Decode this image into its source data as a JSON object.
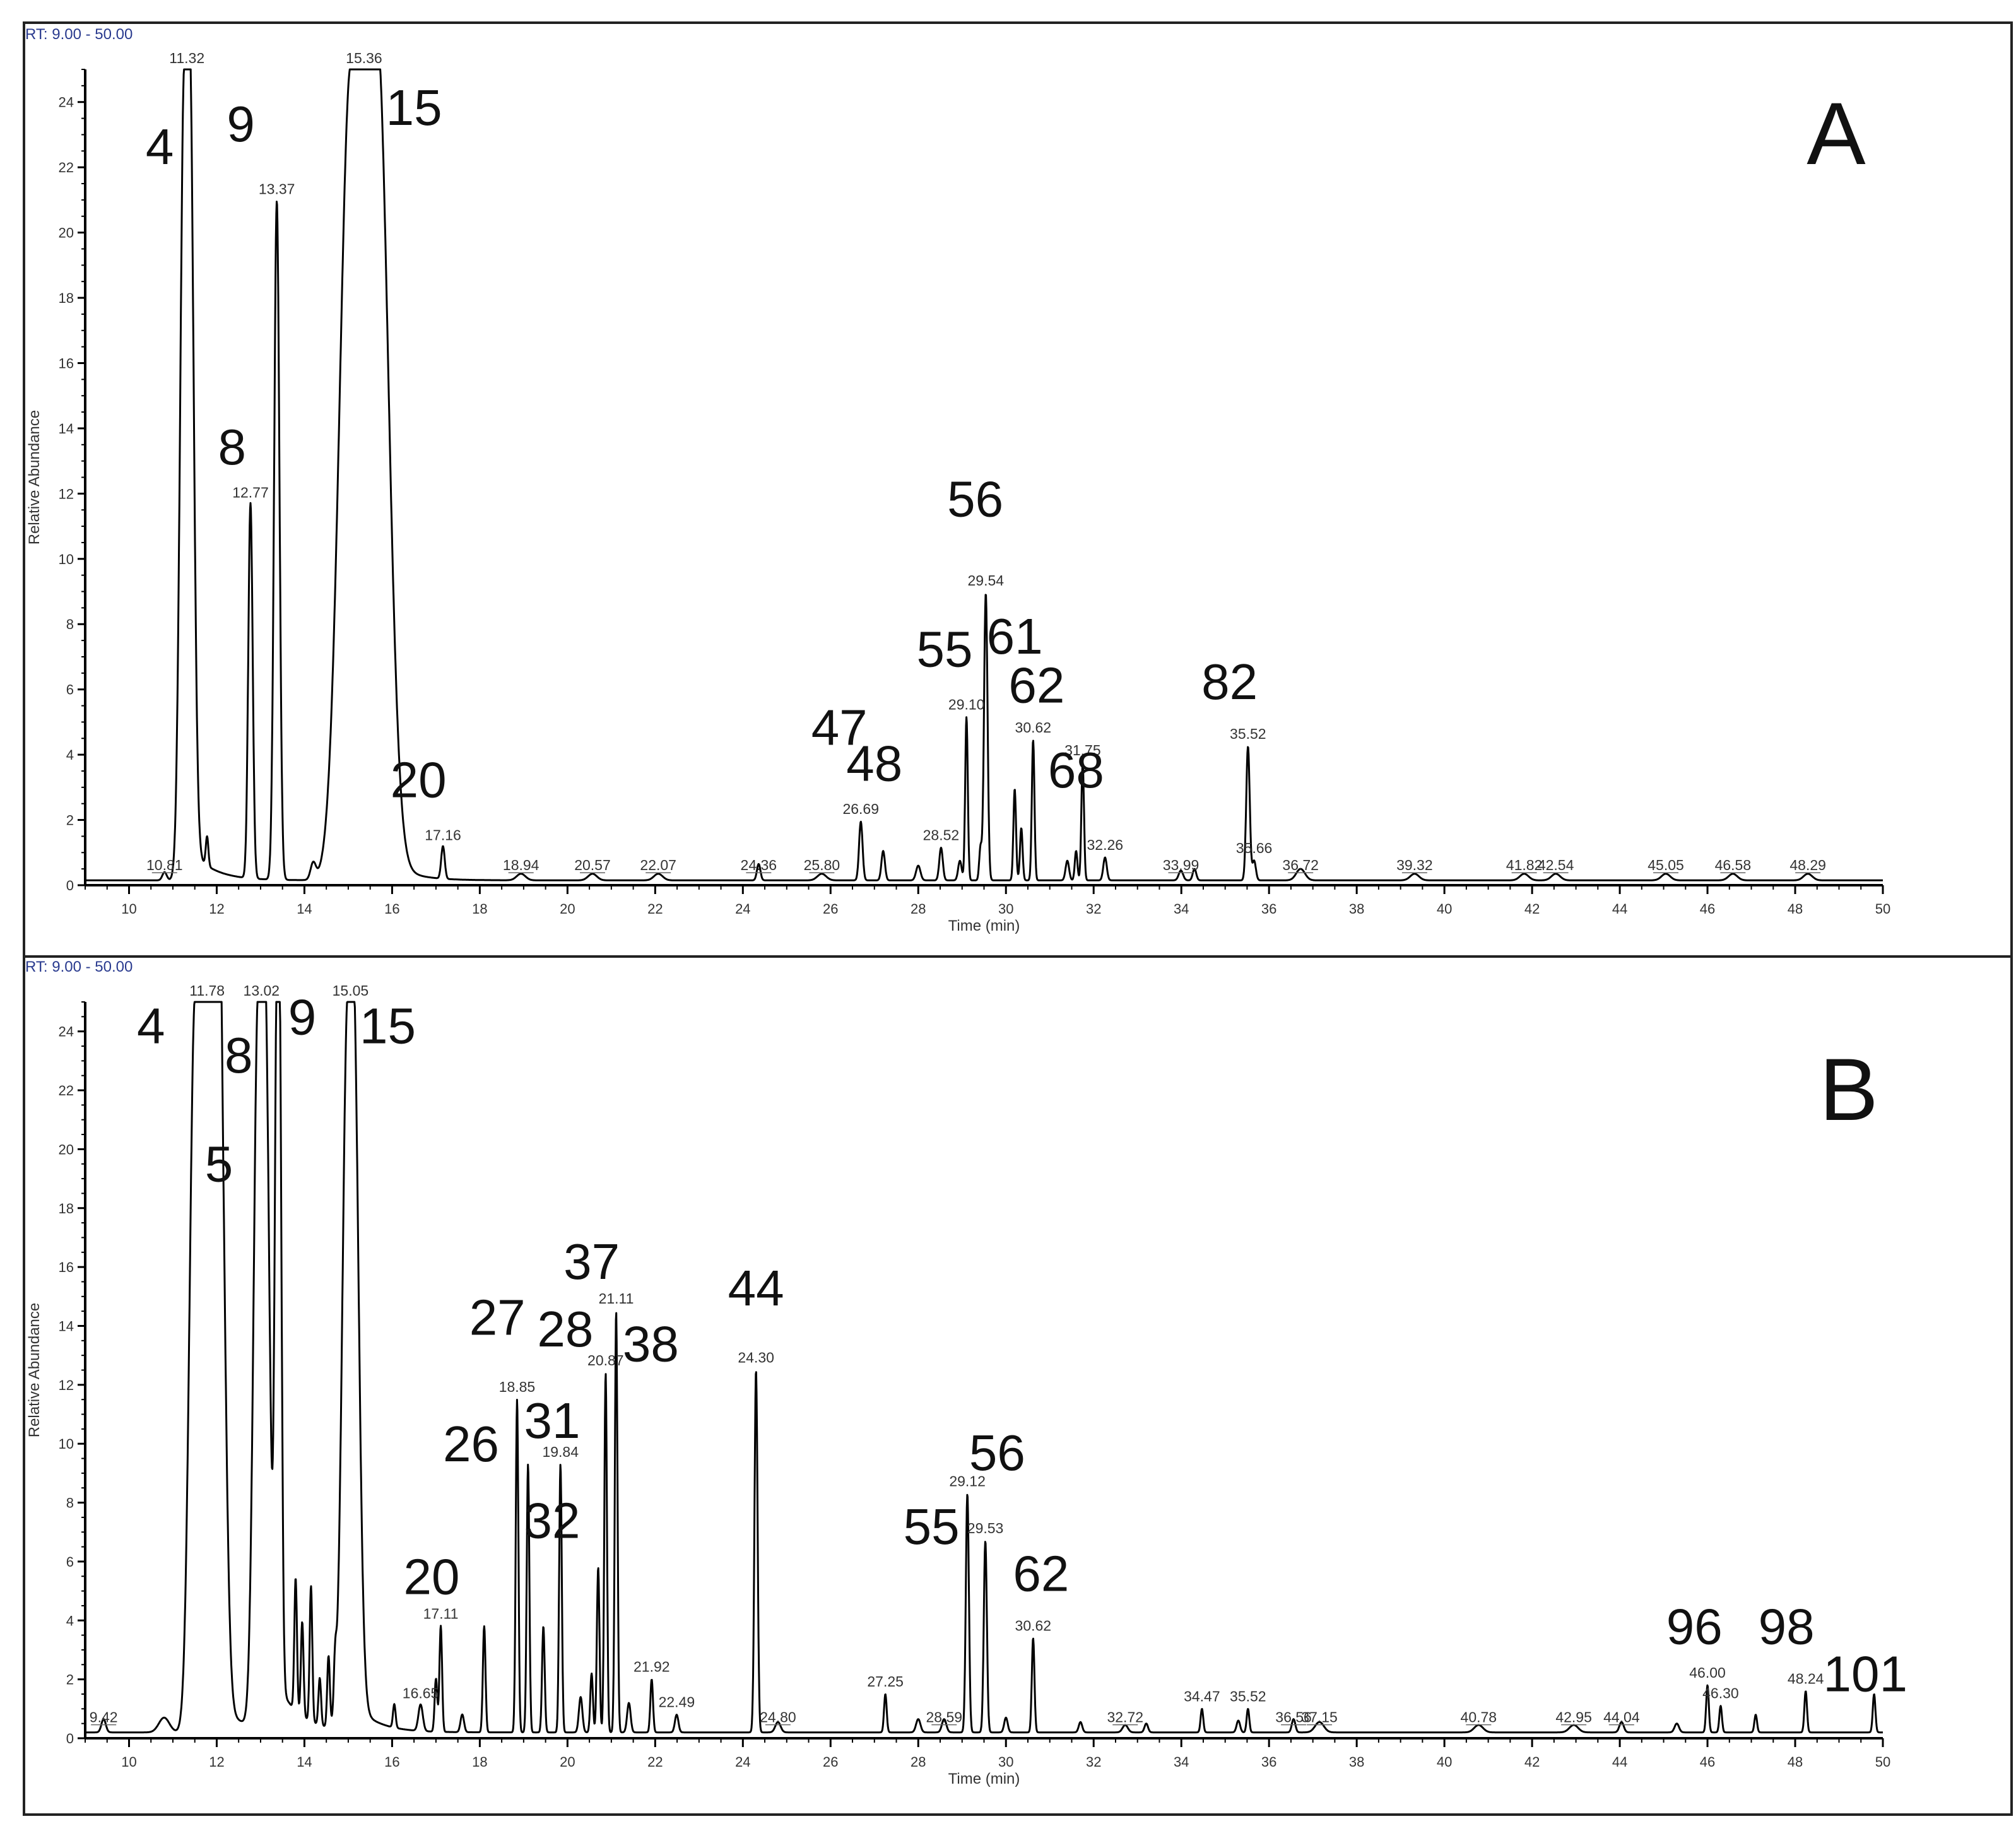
{
  "chart_data": [
    {
      "type": "line",
      "panel": "A",
      "rt_range_label": "RT: 9.00 - 50.00",
      "xlabel": "Time (min)",
      "ylabel": "Relative Abundance",
      "xlim": [
        9,
        50
      ],
      "ylim": [
        0,
        25
      ],
      "x_ticks": [
        10,
        12,
        14,
        16,
        18,
        20,
        22,
        24,
        26,
        28,
        30,
        32,
        34,
        36,
        38,
        40,
        42,
        44,
        46,
        48,
        50
      ],
      "y_ticks": [
        0,
        2,
        4,
        6,
        8,
        10,
        12,
        14,
        16,
        18,
        20,
        22,
        24
      ],
      "baseline": 0.15,
      "peaks": [
        {
          "rt": 10.81,
          "h": 0.25,
          "w": 0.05,
          "label": "10.81"
        },
        {
          "rt": 11.32,
          "h": 25,
          "w": 0.09,
          "flat": 0.12,
          "label": "11.32"
        },
        {
          "rt": 11.78,
          "h": 0.9,
          "w": 0.03
        },
        {
          "rt": 12.77,
          "h": 11.5,
          "w": 0.05,
          "label": "12.77"
        },
        {
          "rt": 13.37,
          "h": 20.8,
          "w": 0.06,
          "label": "13.37"
        },
        {
          "rt": 14.2,
          "h": 0.5,
          "w": 0.06
        },
        {
          "rt": 15.36,
          "h": 25,
          "w": 0.25,
          "flat": 0.6,
          "label": "15.36"
        },
        {
          "rt": 17.16,
          "h": 1.0,
          "w": 0.04,
          "label": "17.16"
        },
        {
          "rt": 18.94,
          "h": 0.2,
          "w": 0.1,
          "label": "18.94"
        },
        {
          "rt": 20.57,
          "h": 0.2,
          "w": 0.1,
          "label": "20.57"
        },
        {
          "rt": 22.07,
          "h": 0.2,
          "w": 0.1,
          "label": "22.07"
        },
        {
          "rt": 24.36,
          "h": 0.5,
          "w": 0.04,
          "label": "24.36"
        },
        {
          "rt": 25.8,
          "h": 0.2,
          "w": 0.1,
          "label": "25.80"
        },
        {
          "rt": 26.69,
          "h": 1.8,
          "w": 0.04,
          "label": "26.69"
        },
        {
          "rt": 27.2,
          "h": 0.9,
          "w": 0.04
        },
        {
          "rt": 28.0,
          "h": 0.45,
          "w": 0.05
        },
        {
          "rt": 28.52,
          "h": 1.0,
          "w": 0.04,
          "label": "28.52"
        },
        {
          "rt": 28.95,
          "h": 0.6,
          "w": 0.04
        },
        {
          "rt": 29.1,
          "h": 5.0,
          "w": 0.03,
          "label": "29.10"
        },
        {
          "rt": 29.42,
          "h": 1.0,
          "w": 0.03
        },
        {
          "rt": 29.54,
          "h": 8.8,
          "w": 0.04,
          "label": "29.54"
        },
        {
          "rt": 30.2,
          "h": 2.8,
          "w": 0.03
        },
        {
          "rt": 30.35,
          "h": 1.6,
          "w": 0.03
        },
        {
          "rt": 30.62,
          "h": 4.3,
          "w": 0.03,
          "label": "30.62"
        },
        {
          "rt": 31.4,
          "h": 0.6,
          "w": 0.04
        },
        {
          "rt": 31.6,
          "h": 0.9,
          "w": 0.03
        },
        {
          "rt": 31.75,
          "h": 3.6,
          "w": 0.03,
          "label": "31.75"
        },
        {
          "rt": 32.26,
          "h": 0.7,
          "w": 0.04,
          "label": "32.26"
        },
        {
          "rt": 33.99,
          "h": 0.3,
          "w": 0.05,
          "label": "33.99"
        },
        {
          "rt": 34.3,
          "h": 0.35,
          "w": 0.04
        },
        {
          "rt": 35.52,
          "h": 4.1,
          "w": 0.04,
          "label": "35.52"
        },
        {
          "rt": 35.66,
          "h": 0.6,
          "w": 0.04,
          "label": "35.66"
        },
        {
          "rt": 36.72,
          "h": 0.35,
          "w": 0.1,
          "label": "36.72"
        },
        {
          "rt": 39.32,
          "h": 0.2,
          "w": 0.1,
          "label": "39.32"
        },
        {
          "rt": 41.82,
          "h": 0.2,
          "w": 0.1,
          "label": "41.82"
        },
        {
          "rt": 42.54,
          "h": 0.2,
          "w": 0.1,
          "label": "42.54"
        },
        {
          "rt": 45.05,
          "h": 0.2,
          "w": 0.1,
          "label": "45.05"
        },
        {
          "rt": 46.58,
          "h": 0.2,
          "w": 0.1,
          "label": "46.58"
        },
        {
          "rt": 48.29,
          "h": 0.2,
          "w": 0.1,
          "label": "48.29"
        }
      ],
      "compound_labels": [
        {
          "text": "4",
          "x": 10.7,
          "y": 22.1
        },
        {
          "text": "9",
          "x": 12.55,
          "y": 22.8
        },
        {
          "text": "15",
          "x": 16.5,
          "y": 23.3
        },
        {
          "text": "8",
          "x": 12.35,
          "y": 12.9
        },
        {
          "text": "56",
          "x": 29.3,
          "y": 11.3
        },
        {
          "text": "55",
          "x": 28.6,
          "y": 6.7
        },
        {
          "text": "61",
          "x": 30.2,
          "y": 7.1
        },
        {
          "text": "62",
          "x": 30.7,
          "y": 5.6
        },
        {
          "text": "82",
          "x": 35.1,
          "y": 5.7
        },
        {
          "text": "47",
          "x": 26.2,
          "y": 4.3
        },
        {
          "text": "48",
          "x": 27.0,
          "y": 3.2
        },
        {
          "text": "68",
          "x": 31.6,
          "y": 3.0
        },
        {
          "text": "20",
          "x": 16.6,
          "y": 2.7
        }
      ],
      "panel_label": "A"
    },
    {
      "type": "line",
      "panel": "B",
      "rt_range_label": "RT: 9.00 - 50.00",
      "xlabel": "Time (min)",
      "ylabel": "Relative Abundance",
      "xlim": [
        9,
        50
      ],
      "ylim": [
        0,
        25
      ],
      "x_ticks": [
        10,
        12,
        14,
        16,
        18,
        20,
        22,
        24,
        26,
        28,
        30,
        32,
        34,
        36,
        38,
        40,
        42,
        44,
        46,
        48,
        50
      ],
      "y_ticks": [
        0,
        2,
        4,
        6,
        8,
        10,
        12,
        14,
        16,
        18,
        20,
        22,
        24
      ],
      "baseline": 0.2,
      "peaks": [
        {
          "rt": 9.42,
          "h": 0.45,
          "w": 0.05,
          "label": "9.42"
        },
        {
          "rt": 10.8,
          "h": 0.5,
          "w": 0.12
        },
        {
          "rt": 11.78,
          "h": 25,
          "w": 0.12,
          "flat": 0.55,
          "label": "11.78"
        },
        {
          "rt": 11.97,
          "h": 10.0,
          "w": 0.05
        },
        {
          "rt": 12.05,
          "h": 5.0,
          "w": 0.04
        },
        {
          "rt": 13.02,
          "h": 25,
          "w": 0.1,
          "flat": 0.15,
          "label": "13.02"
        },
        {
          "rt": 13.4,
          "h": 25,
          "w": 0.05,
          "flat": 0.05
        },
        {
          "rt": 13.8,
          "h": 4.5,
          "w": 0.03
        },
        {
          "rt": 13.95,
          "h": 3.2,
          "w": 0.03
        },
        {
          "rt": 14.15,
          "h": 4.6,
          "w": 0.03
        },
        {
          "rt": 14.35,
          "h": 1.6,
          "w": 0.03
        },
        {
          "rt": 14.55,
          "h": 2.4,
          "w": 0.03
        },
        {
          "rt": 14.7,
          "h": 1.6,
          "w": 0.03
        },
        {
          "rt": 15.05,
          "h": 25,
          "w": 0.12,
          "flat": 0.12,
          "label": "15.05"
        },
        {
          "rt": 16.05,
          "h": 0.8,
          "w": 0.03
        },
        {
          "rt": 16.65,
          "h": 0.9,
          "w": 0.05,
          "label": "16.65"
        },
        {
          "rt": 17.0,
          "h": 1.8,
          "w": 0.03
        },
        {
          "rt": 17.11,
          "h": 3.6,
          "w": 0.03,
          "label": "17.11"
        },
        {
          "rt": 17.6,
          "h": 0.6,
          "w": 0.04
        },
        {
          "rt": 18.1,
          "h": 3.6,
          "w": 0.03
        },
        {
          "rt": 18.85,
          "h": 11.3,
          "w": 0.03,
          "label": "18.85"
        },
        {
          "rt": 19.1,
          "h": 9.1,
          "w": 0.03
        },
        {
          "rt": 19.45,
          "h": 3.6,
          "w": 0.03
        },
        {
          "rt": 19.84,
          "h": 9.1,
          "w": 0.03,
          "label": "19.84"
        },
        {
          "rt": 20.3,
          "h": 1.2,
          "w": 0.04
        },
        {
          "rt": 20.55,
          "h": 2.0,
          "w": 0.03
        },
        {
          "rt": 20.7,
          "h": 5.6,
          "w": 0.03
        },
        {
          "rt": 20.87,
          "h": 12.2,
          "w": 0.03,
          "label": "20.87"
        },
        {
          "rt": 21.11,
          "h": 14.3,
          "w": 0.03,
          "label": "21.11"
        },
        {
          "rt": 21.4,
          "h": 1.0,
          "w": 0.04
        },
        {
          "rt": 21.92,
          "h": 1.8,
          "w": 0.03,
          "label": "21.92"
        },
        {
          "rt": 22.49,
          "h": 0.6,
          "w": 0.04,
          "label": "22.49"
        },
        {
          "rt": 24.3,
          "h": 12.3,
          "w": 0.035,
          "label": "24.30"
        },
        {
          "rt": 24.8,
          "h": 0.35,
          "w": 0.06,
          "label": "24.80"
        },
        {
          "rt": 27.25,
          "h": 1.3,
          "w": 0.03,
          "label": "27.25"
        },
        {
          "rt": 28.0,
          "h": 0.45,
          "w": 0.05
        },
        {
          "rt": 28.59,
          "h": 0.45,
          "w": 0.05,
          "label": "28.59"
        },
        {
          "rt": 29.12,
          "h": 8.1,
          "w": 0.035,
          "label": "29.12"
        },
        {
          "rt": 29.53,
          "h": 6.5,
          "w": 0.035,
          "label": "29.53"
        },
        {
          "rt": 30.0,
          "h": 0.5,
          "w": 0.04
        },
        {
          "rt": 30.62,
          "h": 3.2,
          "w": 0.03,
          "label": "30.62"
        },
        {
          "rt": 31.7,
          "h": 0.35,
          "w": 0.04
        },
        {
          "rt": 32.72,
          "h": 0.25,
          "w": 0.06,
          "label": "32.72"
        },
        {
          "rt": 33.2,
          "h": 0.3,
          "w": 0.04
        },
        {
          "rt": 34.47,
          "h": 0.8,
          "w": 0.03,
          "label": "34.47"
        },
        {
          "rt": 35.3,
          "h": 0.4,
          "w": 0.04
        },
        {
          "rt": 35.52,
          "h": 0.8,
          "w": 0.03,
          "label": "35.52"
        },
        {
          "rt": 36.56,
          "h": 0.45,
          "w": 0.04,
          "label": "36.56"
        },
        {
          "rt": 37.15,
          "h": 0.35,
          "w": 0.1,
          "label": "37.15"
        },
        {
          "rt": 40.78,
          "h": 0.25,
          "w": 0.1,
          "label": "40.78"
        },
        {
          "rt": 42.95,
          "h": 0.25,
          "w": 0.1,
          "label": "42.95"
        },
        {
          "rt": 44.04,
          "h": 0.35,
          "w": 0.05,
          "label": "44.04"
        },
        {
          "rt": 45.3,
          "h": 0.3,
          "w": 0.05
        },
        {
          "rt": 46.0,
          "h": 1.6,
          "w": 0.03,
          "label": "46.00"
        },
        {
          "rt": 46.3,
          "h": 0.9,
          "w": 0.03,
          "label": "46.30"
        },
        {
          "rt": 47.1,
          "h": 0.6,
          "w": 0.03
        },
        {
          "rt": 48.24,
          "h": 1.4,
          "w": 0.03,
          "label": "48.24"
        },
        {
          "rt": 49.8,
          "h": 1.3,
          "w": 0.03
        }
      ],
      "compound_labels": [
        {
          "text": "4",
          "x": 10.5,
          "y": 23.6
        },
        {
          "text": "8",
          "x": 12.5,
          "y": 22.6
        },
        {
          "text": "9",
          "x": 13.95,
          "y": 23.9
        },
        {
          "text": "15",
          "x": 15.9,
          "y": 23.6
        },
        {
          "text": "5",
          "x": 12.05,
          "y": 18.9
        },
        {
          "text": "37",
          "x": 20.55,
          "y": 15.6
        },
        {
          "text": "44",
          "x": 24.3,
          "y": 14.7
        },
        {
          "text": "27",
          "x": 18.4,
          "y": 13.7
        },
        {
          "text": "28",
          "x": 19.95,
          "y": 13.3
        },
        {
          "text": "38",
          "x": 21.9,
          "y": 12.8
        },
        {
          "text": "31",
          "x": 19.65,
          "y": 10.2
        },
        {
          "text": "26",
          "x": 17.8,
          "y": 9.4
        },
        {
          "text": "56",
          "x": 29.8,
          "y": 9.1
        },
        {
          "text": "32",
          "x": 19.65,
          "y": 6.8
        },
        {
          "text": "55",
          "x": 28.3,
          "y": 6.6
        },
        {
          "text": "62",
          "x": 30.8,
          "y": 5.0
        },
        {
          "text": "20",
          "x": 16.9,
          "y": 4.9
        },
        {
          "text": "96",
          "x": 45.7,
          "y": 3.2
        },
        {
          "text": "98",
          "x": 47.8,
          "y": 3.2
        },
        {
          "text": "101",
          "x": 49.6,
          "y": 1.6
        }
      ],
      "panel_label": "B"
    }
  ]
}
